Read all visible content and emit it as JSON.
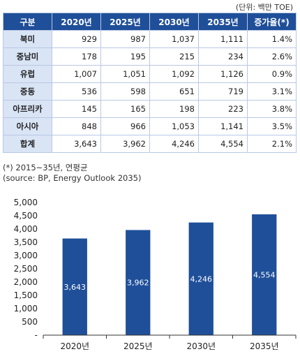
{
  "unit_label": "(단위: 백만 TOE)",
  "table": {
    "headers": [
      "구분",
      "2020년",
      "2025년",
      "2030년",
      "2035년",
      "증가율(*)"
    ],
    "rows": [
      {
        "region": "북미",
        "values": [
          "929",
          "987",
          "1,037",
          "1,111",
          "1.4%"
        ]
      },
      {
        "region": "중남미",
        "values": [
          "178",
          "195",
          "215",
          "234",
          "2.6%"
        ]
      },
      {
        "region": "유럽",
        "values": [
          "1,007",
          "1,051",
          "1,092",
          "1,126",
          "0.9%"
        ]
      },
      {
        "region": "중동",
        "values": [
          "536",
          "598",
          "651",
          "719",
          "3.1%"
        ]
      },
      {
        "region": "아프리카",
        "values": [
          "145",
          "165",
          "198",
          "223",
          "3.8%"
        ]
      },
      {
        "region": "아시아",
        "values": [
          "848",
          "966",
          "1,053",
          "1,141",
          "3.5%"
        ]
      },
      {
        "region": "합계",
        "values": [
          "3,643",
          "3,962",
          "4,246",
          "4,554",
          "2.1%"
        ]
      }
    ]
  },
  "notes": {
    "footnote": "(*) 2015~35년, 연평균",
    "source": "(source: BP, Energy Outlook 2035)"
  },
  "chart_data": {
    "type": "bar",
    "categories": [
      "2020년",
      "2025년",
      "2030년",
      "2035년"
    ],
    "values": [
      3643,
      3962,
      4246,
      4554
    ],
    "data_labels": [
      "3,643",
      "3,962",
      "4,246",
      "4,554"
    ],
    "ylim": [
      0,
      5000
    ],
    "yticks": [
      "-",
      "500",
      "1,000",
      "1,500",
      "2,000",
      "2,500",
      "3,000",
      "3,500",
      "4,000",
      "4,500",
      "5,000"
    ],
    "title": "",
    "xlabel": "",
    "ylabel": "",
    "grid": false,
    "bar_color": "#1f4f99",
    "label_color": "#ffffff"
  }
}
